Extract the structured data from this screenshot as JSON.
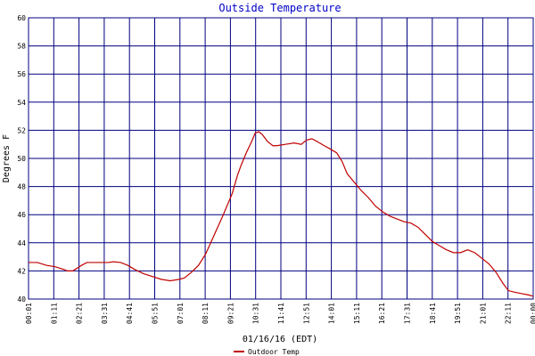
{
  "chart_data": {
    "type": "line",
    "title": "Outside Temperature",
    "xlabel": "01/16/16 (EDT)",
    "ylabel": "Degrees F",
    "ylim": [
      40,
      60
    ],
    "yticks": [
      40,
      42,
      44,
      46,
      48,
      50,
      52,
      54,
      56,
      58,
      60
    ],
    "xticks": [
      "00:01",
      "01:11",
      "02:21",
      "03:31",
      "04:41",
      "05:51",
      "07:01",
      "08:11",
      "09:21",
      "10:31",
      "11:41",
      "12:51",
      "14:01",
      "15:11",
      "16:21",
      "17:31",
      "18:41",
      "19:51",
      "21:01",
      "22:11",
      "00:00"
    ],
    "grid": true,
    "legend": "bottom-left",
    "series": [
      {
        "name": "Outdoor Temp",
        "color": "#c00000",
        "points": [
          [
            0,
            42.6
          ],
          [
            0.5,
            42.6
          ],
          [
            1,
            42.4
          ],
          [
            1.5,
            42.3
          ],
          [
            2,
            42.1
          ],
          [
            2.2,
            42.0
          ],
          [
            2.5,
            42.0
          ],
          [
            3,
            42.4
          ],
          [
            3.3,
            42.6
          ],
          [
            3.6,
            42.6
          ],
          [
            4,
            42.6
          ],
          [
            4.5,
            42.6
          ],
          [
            4.8,
            42.65
          ],
          [
            5.2,
            42.6
          ],
          [
            5.6,
            42.4
          ],
          [
            6,
            42.1
          ],
          [
            6.5,
            41.8
          ],
          [
            7,
            41.6
          ],
          [
            7.5,
            41.4
          ],
          [
            8,
            41.3
          ],
          [
            8.5,
            41.4
          ],
          [
            8.8,
            41.5
          ],
          [
            9.2,
            41.9
          ],
          [
            9.6,
            42.4
          ],
          [
            10,
            43.2
          ],
          [
            10.5,
            44.6
          ],
          [
            11,
            46.0
          ],
          [
            11.5,
            47.5
          ],
          [
            11.8,
            48.8
          ],
          [
            12,
            49.5
          ],
          [
            12.3,
            50.4
          ],
          [
            12.6,
            51.2
          ],
          [
            12.8,
            51.8
          ],
          [
            13,
            51.9
          ],
          [
            13.2,
            51.7
          ],
          [
            13.5,
            51.2
          ],
          [
            13.8,
            50.9
          ],
          [
            14,
            50.9
          ],
          [
            14.5,
            51.0
          ],
          [
            15,
            51.1
          ],
          [
            15.4,
            51.0
          ],
          [
            15.7,
            51.3
          ],
          [
            16,
            51.4
          ],
          [
            16.3,
            51.2
          ],
          [
            16.7,
            50.9
          ],
          [
            17,
            50.7
          ],
          [
            17.4,
            50.4
          ],
          [
            17.7,
            49.8
          ],
          [
            18,
            48.9
          ],
          [
            18.4,
            48.3
          ],
          [
            18.8,
            47.7
          ],
          [
            19.2,
            47.2
          ],
          [
            19.6,
            46.6
          ],
          [
            20,
            46.2
          ],
          [
            20.4,
            45.9
          ],
          [
            20.8,
            45.7
          ],
          [
            21.2,
            45.5
          ],
          [
            21.6,
            45.4
          ],
          [
            22,
            45.1
          ],
          [
            22.4,
            44.6
          ],
          [
            22.8,
            44.1
          ],
          [
            23.2,
            43.8
          ],
          [
            23.6,
            43.5
          ],
          [
            24,
            43.3
          ],
          [
            24.4,
            43.3
          ],
          [
            24.8,
            43.5
          ],
          [
            25.2,
            43.3
          ],
          [
            25.6,
            42.9
          ],
          [
            26,
            42.5
          ],
          [
            26.4,
            41.9
          ],
          [
            26.8,
            41.1
          ],
          [
            27.1,
            40.6
          ],
          [
            27.4,
            40.5
          ],
          [
            27.8,
            40.4
          ],
          [
            28.2,
            40.3
          ],
          [
            28.5,
            40.2
          ]
        ]
      }
    ]
  }
}
